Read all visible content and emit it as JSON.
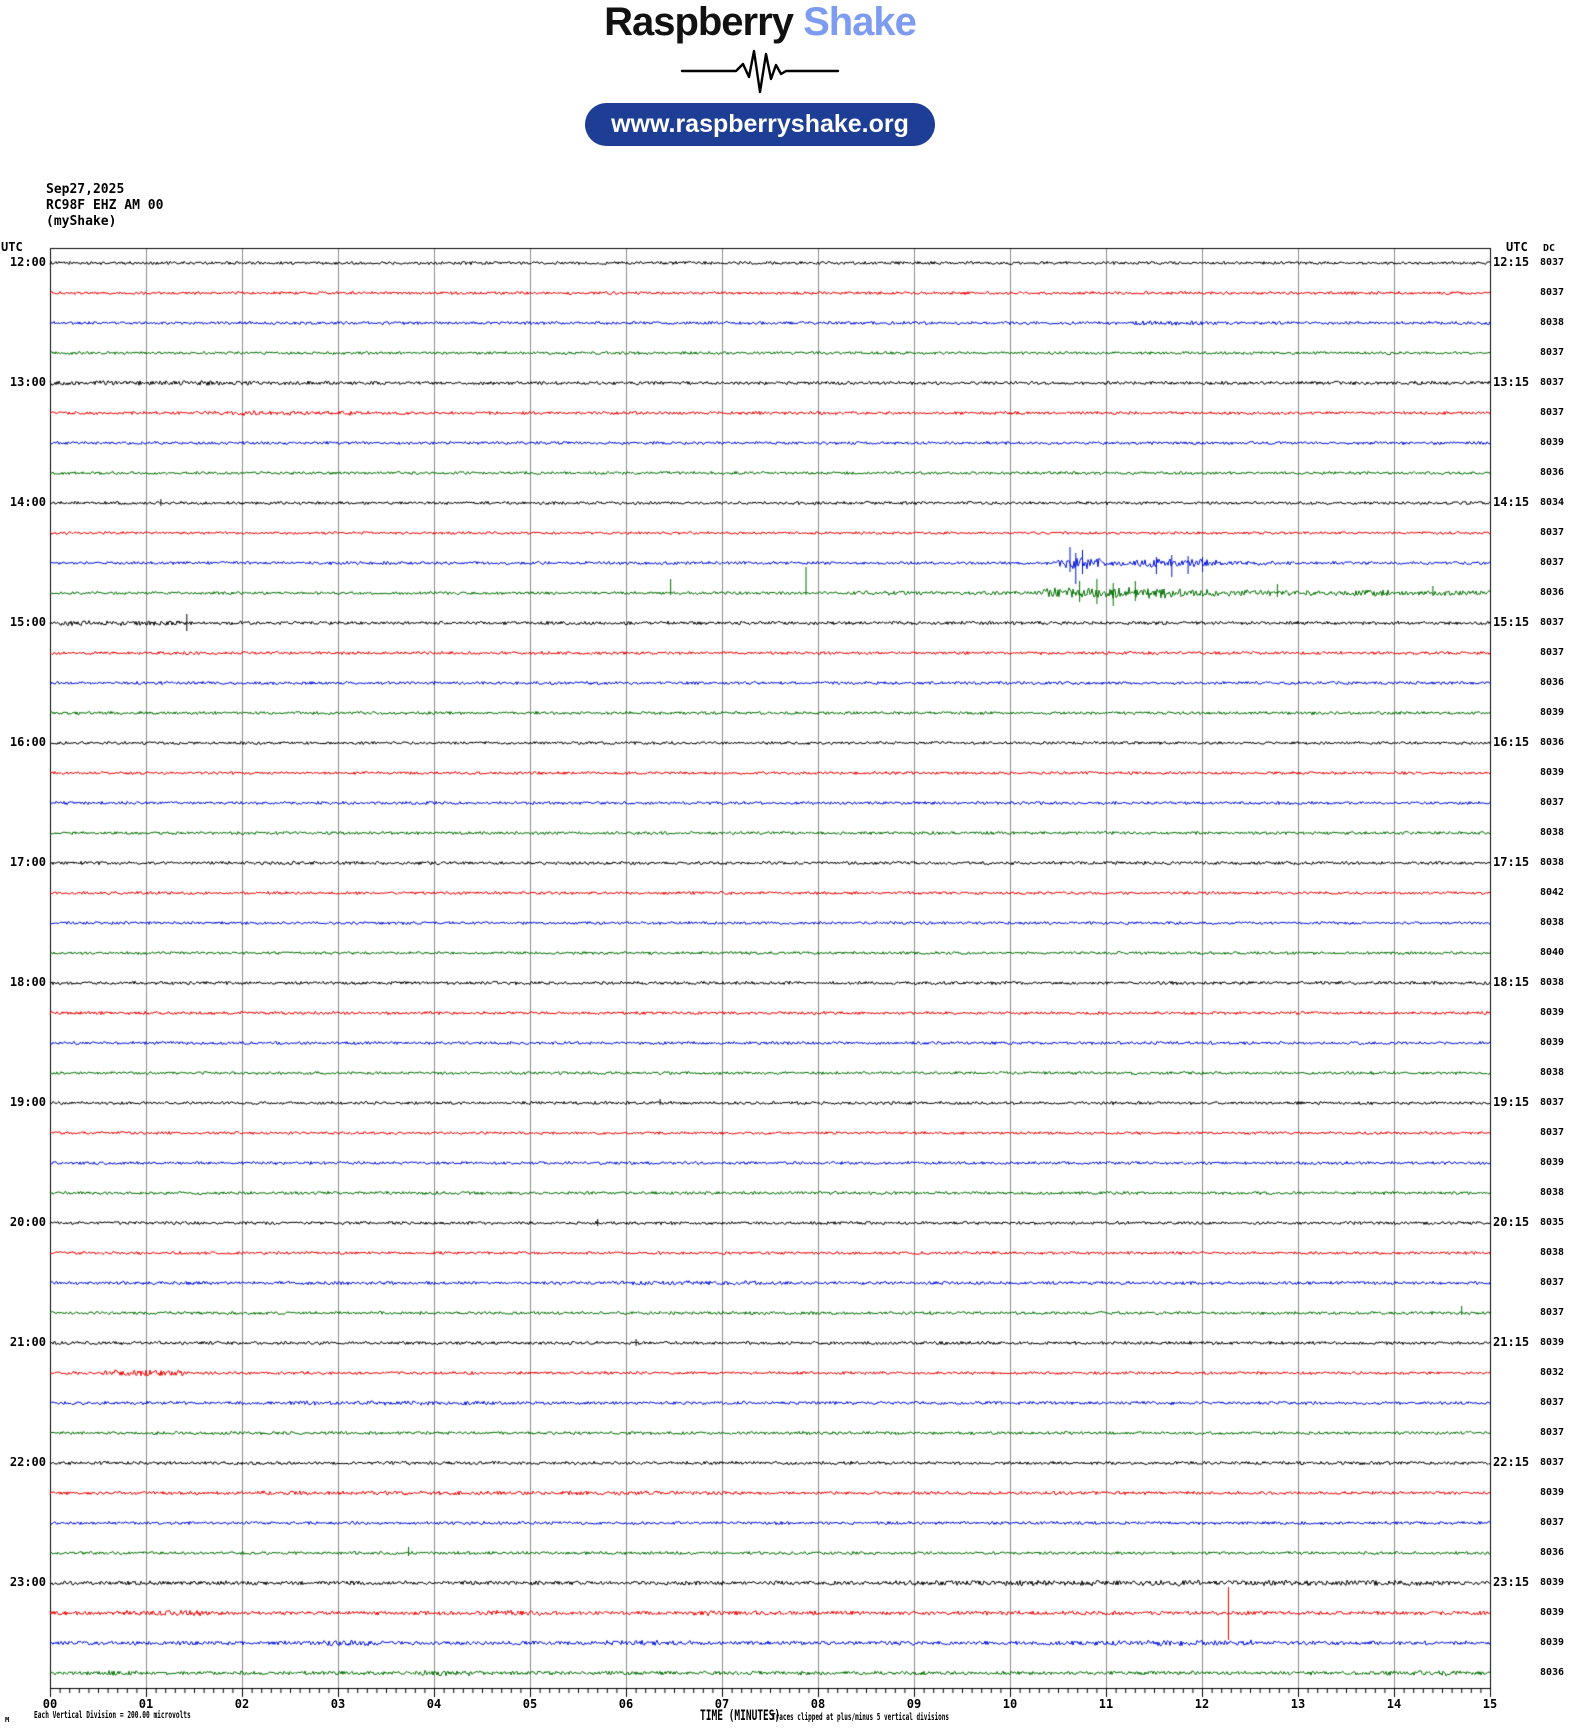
{
  "header": {
    "brand_black": "Raspberry",
    "brand_blue": "Shake",
    "brand_blue_color": "#7e9bf2",
    "pill_text": "www.raspberryshake.org",
    "pill_color": "#1d3e94"
  },
  "station": {
    "date": "Sep27,2025",
    "code": "RC98F EHZ AM 00",
    "name": "(myShake)"
  },
  "labels": {
    "utc_left": "UTC",
    "utc_right": "UTC",
    "dc": "DC",
    "x_axis_title": "TIME (MINUTES)",
    "clip_note": "Traces clipped at plus/minus 5 vertical divisions",
    "division_note": "Each Vertical Division =  200.00 microvolts",
    "corner_mark": "M"
  },
  "chart_data": {
    "type": "line",
    "subtype": "helicorder-seismogram",
    "title": "RC98F EHZ AM 00 (myShake) helicorder, Sep27,2025, 12:00-24:00 UTC",
    "row_duration_minutes": 15,
    "x_axis": {
      "label": "TIME (MINUTES)",
      "min": 0,
      "max": 15,
      "tick_labels": [
        "00",
        "01",
        "02",
        "03",
        "04",
        "05",
        "06",
        "07",
        "08",
        "09",
        "10",
        "11",
        "12",
        "13",
        "14",
        "15"
      ],
      "minor_ticks_per_minute": 10
    },
    "grid": true,
    "grid_color": "#8c8c8c",
    "trace_colors": {
      "black": "#000000",
      "red": "#ee0000",
      "blue": "#0011dd",
      "green": "#006f00"
    },
    "events_format": "[start_min, end_min, noise_amplitude_px]",
    "spikes_format": "[minute, up_px, down_px]",
    "rows": [
      {
        "start": "12:00",
        "left_label": "12:00",
        "right_label": "12:15",
        "color": "black",
        "dc": 8037,
        "amp": 1.8,
        "events": [],
        "spikes": []
      },
      {
        "start": "12:15",
        "left_label": null,
        "right_label": null,
        "color": "red",
        "dc": 8037,
        "amp": 1.7,
        "events": [],
        "spikes": []
      },
      {
        "start": "12:30",
        "left_label": null,
        "right_label": null,
        "color": "blue",
        "dc": 8038,
        "amp": 1.8,
        "events": [
          [
            11.3,
            12.0,
            2.6
          ]
        ],
        "spikes": []
      },
      {
        "start": "12:45",
        "left_label": null,
        "right_label": null,
        "color": "green",
        "dc": 8037,
        "amp": 1.7,
        "events": [],
        "spikes": []
      },
      {
        "start": "13:00",
        "left_label": "13:00",
        "right_label": "13:15",
        "color": "black",
        "dc": 8037,
        "amp": 2.0,
        "events": [
          [
            0,
            2.3,
            2.7
          ]
        ],
        "spikes": []
      },
      {
        "start": "13:15",
        "left_label": null,
        "right_label": null,
        "color": "red",
        "dc": 8037,
        "amp": 1.8,
        "events": [
          [
            1.6,
            3.2,
            2.6
          ]
        ],
        "spikes": []
      },
      {
        "start": "13:30",
        "left_label": null,
        "right_label": null,
        "color": "blue",
        "dc": 8039,
        "amp": 1.8,
        "events": [],
        "spikes": []
      },
      {
        "start": "13:45",
        "left_label": null,
        "right_label": null,
        "color": "green",
        "dc": 8036,
        "amp": 1.7,
        "events": [],
        "spikes": []
      },
      {
        "start": "14:00",
        "left_label": "14:00",
        "right_label": "14:15",
        "color": "black",
        "dc": 8034,
        "amp": 1.8,
        "events": [],
        "spikes": [
          [
            1.15,
            4,
            3
          ]
        ]
      },
      {
        "start": "14:15",
        "left_label": null,
        "right_label": null,
        "color": "red",
        "dc": 8037,
        "amp": 1.6,
        "events": [],
        "spikes": []
      },
      {
        "start": "14:30",
        "left_label": null,
        "right_label": null,
        "color": "blue",
        "dc": 8037,
        "amp": 1.8,
        "events": [
          [
            10.5,
            10.95,
            6.5
          ],
          [
            10.95,
            11.35,
            3.2
          ],
          [
            11.35,
            12.15,
            4.6
          ],
          [
            12.15,
            12.95,
            2.7
          ]
        ],
        "spikes": [
          [
            10.62,
            16,
            9
          ],
          [
            10.68,
            10,
            21
          ],
          [
            10.75,
            13,
            11
          ],
          [
            11.52,
            6,
            11
          ],
          [
            11.68,
            8,
            14
          ],
          [
            11.85,
            7,
            11
          ],
          [
            12.0,
            6,
            9
          ]
        ]
      },
      {
        "start": "14:45",
        "left_label": null,
        "right_label": null,
        "color": "green",
        "dc": 8036,
        "amp": 1.7,
        "events": [
          [
            8.35,
            10.35,
            2.4
          ],
          [
            10.35,
            11.7,
            6.0
          ],
          [
            11.7,
            12.5,
            4.2
          ],
          [
            12.5,
            13.55,
            3.0
          ],
          [
            13.55,
            13.95,
            4.4
          ],
          [
            13.95,
            15,
            2.8
          ]
        ],
        "spikes": [
          [
            6.46,
            14,
            2
          ],
          [
            7.87,
            26,
            2
          ],
          [
            10.72,
            12,
            9
          ],
          [
            10.9,
            14,
            11
          ],
          [
            11.07,
            10,
            13
          ],
          [
            11.3,
            12,
            8
          ],
          [
            12.78,
            9,
            4
          ],
          [
            14.4,
            7,
            3
          ]
        ]
      },
      {
        "start": "15:00",
        "left_label": "15:00",
        "right_label": "15:15",
        "color": "black",
        "dc": 8037,
        "amp": 2.0,
        "events": [
          [
            0,
            1.35,
            2.8
          ]
        ],
        "spikes": [
          [
            1.42,
            9,
            8
          ]
        ]
      },
      {
        "start": "15:15",
        "left_label": null,
        "right_label": null,
        "color": "red",
        "dc": 8037,
        "amp": 1.8,
        "events": [],
        "spikes": []
      },
      {
        "start": "15:30",
        "left_label": null,
        "right_label": null,
        "color": "blue",
        "dc": 8036,
        "amp": 1.8,
        "events": [],
        "spikes": []
      },
      {
        "start": "15:45",
        "left_label": null,
        "right_label": null,
        "color": "green",
        "dc": 8039,
        "amp": 1.8,
        "events": [],
        "spikes": []
      },
      {
        "start": "16:00",
        "left_label": "16:00",
        "right_label": "16:15",
        "color": "black",
        "dc": 8036,
        "amp": 1.7,
        "events": [],
        "spikes": []
      },
      {
        "start": "16:15",
        "left_label": null,
        "right_label": null,
        "color": "red",
        "dc": 8039,
        "amp": 1.7,
        "events": [],
        "spikes": []
      },
      {
        "start": "16:30",
        "left_label": null,
        "right_label": null,
        "color": "blue",
        "dc": 8037,
        "amp": 1.8,
        "events": [],
        "spikes": []
      },
      {
        "start": "16:45",
        "left_label": null,
        "right_label": null,
        "color": "green",
        "dc": 8038,
        "amp": 1.8,
        "events": [],
        "spikes": []
      },
      {
        "start": "17:00",
        "left_label": "17:00",
        "right_label": "17:15",
        "color": "black",
        "dc": 8038,
        "amp": 1.9,
        "events": [],
        "spikes": []
      },
      {
        "start": "17:15",
        "left_label": null,
        "right_label": null,
        "color": "red",
        "dc": 8042,
        "amp": 1.7,
        "events": [],
        "spikes": []
      },
      {
        "start": "17:30",
        "left_label": null,
        "right_label": null,
        "color": "blue",
        "dc": 8038,
        "amp": 1.7,
        "events": [],
        "spikes": []
      },
      {
        "start": "17:45",
        "left_label": null,
        "right_label": null,
        "color": "green",
        "dc": 8040,
        "amp": 1.7,
        "events": [],
        "spikes": []
      },
      {
        "start": "18:00",
        "left_label": "18:00",
        "right_label": "18:15",
        "color": "black",
        "dc": 8038,
        "amp": 1.9,
        "events": [],
        "spikes": []
      },
      {
        "start": "18:15",
        "left_label": null,
        "right_label": null,
        "color": "red",
        "dc": 8039,
        "amp": 1.8,
        "events": [],
        "spikes": []
      },
      {
        "start": "18:30",
        "left_label": null,
        "right_label": null,
        "color": "blue",
        "dc": 8039,
        "amp": 1.8,
        "events": [],
        "spikes": []
      },
      {
        "start": "18:45",
        "left_label": null,
        "right_label": null,
        "color": "green",
        "dc": 8038,
        "amp": 1.7,
        "events": [],
        "spikes": []
      },
      {
        "start": "19:00",
        "left_label": "19:00",
        "right_label": "19:15",
        "color": "black",
        "dc": 8037,
        "amp": 1.8,
        "events": [],
        "spikes": [
          [
            6.35,
            4,
            2
          ]
        ]
      },
      {
        "start": "19:15",
        "left_label": null,
        "right_label": null,
        "color": "red",
        "dc": 8037,
        "amp": 1.7,
        "events": [],
        "spikes": []
      },
      {
        "start": "19:30",
        "left_label": null,
        "right_label": null,
        "color": "blue",
        "dc": 8039,
        "amp": 1.8,
        "events": [],
        "spikes": []
      },
      {
        "start": "19:45",
        "left_label": null,
        "right_label": null,
        "color": "green",
        "dc": 8038,
        "amp": 1.8,
        "events": [],
        "spikes": []
      },
      {
        "start": "20:00",
        "left_label": "20:00",
        "right_label": "20:15",
        "color": "black",
        "dc": 8035,
        "amp": 1.8,
        "events": [],
        "spikes": [
          [
            5.7,
            4,
            3
          ]
        ]
      },
      {
        "start": "20:15",
        "left_label": null,
        "right_label": null,
        "color": "red",
        "dc": 8038,
        "amp": 1.7,
        "events": [],
        "spikes": []
      },
      {
        "start": "20:30",
        "left_label": null,
        "right_label": null,
        "color": "blue",
        "dc": 8037,
        "amp": 1.9,
        "events": [
          [
            5.8,
            7.7,
            2.4
          ]
        ],
        "spikes": []
      },
      {
        "start": "20:45",
        "left_label": null,
        "right_label": null,
        "color": "green",
        "dc": 8037,
        "amp": 1.8,
        "events": [],
        "spikes": [
          [
            14.7,
            7,
            2
          ]
        ]
      },
      {
        "start": "21:00",
        "left_label": "21:00",
        "right_label": "21:15",
        "color": "black",
        "dc": 8039,
        "amp": 1.9,
        "events": [],
        "spikes": [
          [
            6.1,
            4,
            3
          ]
        ]
      },
      {
        "start": "21:15",
        "left_label": null,
        "right_label": null,
        "color": "red",
        "dc": 8032,
        "amp": 1.7,
        "events": [
          [
            0.55,
            1.4,
            3.6
          ]
        ],
        "spikes": []
      },
      {
        "start": "21:30",
        "left_label": null,
        "right_label": null,
        "color": "blue",
        "dc": 8037,
        "amp": 1.9,
        "events": [
          [
            2.5,
            4.7,
            2.5
          ]
        ],
        "spikes": []
      },
      {
        "start": "21:45",
        "left_label": null,
        "right_label": null,
        "color": "green",
        "dc": 8037,
        "amp": 1.8,
        "events": [],
        "spikes": []
      },
      {
        "start": "22:00",
        "left_label": "22:00",
        "right_label": "22:15",
        "color": "black",
        "dc": 8037,
        "amp": 1.9,
        "events": [],
        "spikes": []
      },
      {
        "start": "22:15",
        "left_label": null,
        "right_label": null,
        "color": "red",
        "dc": 8039,
        "amp": 1.9,
        "events": [
          [
            2.0,
            7.0,
            2.3
          ]
        ],
        "spikes": []
      },
      {
        "start": "22:30",
        "left_label": null,
        "right_label": null,
        "color": "blue",
        "dc": 8037,
        "amp": 1.8,
        "events": [],
        "spikes": []
      },
      {
        "start": "22:45",
        "left_label": null,
        "right_label": null,
        "color": "green",
        "dc": 8036,
        "amp": 1.8,
        "events": [],
        "spikes": [
          [
            3.73,
            6,
            3
          ]
        ]
      },
      {
        "start": "23:00",
        "left_label": "23:00",
        "right_label": "23:15",
        "color": "black",
        "dc": 8039,
        "amp": 2.3,
        "events": [
          [
            8.8,
            14.6,
            3.2
          ]
        ],
        "spikes": []
      },
      {
        "start": "23:15",
        "left_label": null,
        "right_label": null,
        "color": "red",
        "dc": 8039,
        "amp": 2.3,
        "events": [
          [
            0.8,
            1.85,
            3.2
          ],
          [
            4.5,
            5.3,
            3.0
          ],
          [
            6.7,
            7.4,
            2.8
          ]
        ],
        "spikes": [
          [
            12.27,
            26,
            27
          ]
        ]
      },
      {
        "start": "23:30",
        "left_label": null,
        "right_label": null,
        "color": "blue",
        "dc": 8039,
        "amp": 2.3,
        "events": [
          [
            2.6,
            3.4,
            3.2
          ],
          [
            5.8,
            6.7,
            3.0
          ],
          [
            10.8,
            12.7,
            3.2
          ]
        ],
        "spikes": []
      },
      {
        "start": "23:45",
        "left_label": null,
        "right_label": null,
        "color": "green",
        "dc": 8036,
        "amp": 2.2,
        "events": [
          [
            0.2,
            0.9,
            2.8
          ],
          [
            3.8,
            4.4,
            3.0
          ],
          [
            13.8,
            14.7,
            3.0
          ]
        ],
        "spikes": []
      }
    ]
  }
}
